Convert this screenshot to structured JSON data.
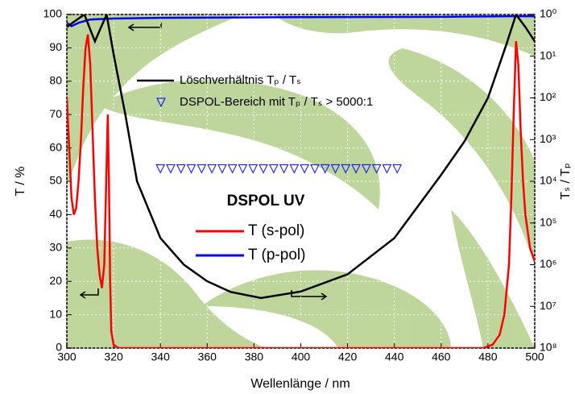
{
  "chart_data": {
    "type": "line",
    "legend_title": "DSPOL UV",
    "x_label": "Wellenlänge / nm",
    "y_label": "T / %",
    "y2_label": "Tₛ / Tₚ",
    "xlim": [
      300,
      500
    ],
    "xticks": [
      300,
      320,
      340,
      360,
      380,
      400,
      420,
      440,
      460,
      480,
      500
    ],
    "ylim": [
      0,
      100
    ],
    "yticks": [
      0,
      10,
      20,
      30,
      40,
      50,
      60,
      70,
      80,
      90,
      100
    ],
    "y2lim": [
      1,
      100000000
    ],
    "y2_log": true,
    "y2_inverted": true,
    "y2ticks": [
      {
        "value": 1,
        "label": "10⁰"
      },
      {
        "value": 10,
        "label": "10¹"
      },
      {
        "value": 100,
        "label": "10²"
      },
      {
        "value": 1000,
        "label": "10³"
      },
      {
        "value": 10000,
        "label": "10⁴"
      },
      {
        "value": 100000,
        "label": "10⁵"
      },
      {
        "value": 1000000,
        "label": "10⁶"
      },
      {
        "value": 10000000,
        "label": "10⁷"
      },
      {
        "value": 100000000,
        "label": "10⁸"
      }
    ],
    "grid": true,
    "series": [
      {
        "name": "T (s-pol)",
        "color": "#ff0000",
        "x": [
          300,
          301,
          302,
          303,
          304,
          305,
          306,
          307,
          308,
          309,
          310,
          311,
          312,
          313,
          314,
          315,
          316,
          317,
          317.5,
          318,
          318.5,
          319,
          320,
          322,
          340,
          400,
          460,
          478,
          482,
          485,
          487,
          489,
          490,
          491,
          492,
          493,
          494,
          495,
          496,
          498,
          500
        ],
        "values": [
          75,
          60,
          45,
          40,
          42,
          50,
          62,
          78,
          90,
          94,
          85,
          65,
          45,
          30,
          22,
          18,
          25,
          55,
          70,
          50,
          20,
          5,
          1,
          0,
          0,
          0,
          0,
          0,
          1,
          4,
          10,
          25,
          45,
          70,
          92,
          85,
          65,
          50,
          40,
          30,
          26
        ]
      },
      {
        "name": "T (p-pol)",
        "color": "#0000ff",
        "x": [
          300,
          302,
          305,
          310,
          320,
          340,
          400,
          460,
          490,
          500
        ],
        "values": [
          97.5,
          96.5,
          97.5,
          98.5,
          98.8,
          99,
          99.2,
          99.3,
          99.5,
          99.5
        ]
      },
      {
        "name": "Löschverhältnis Tₚ / Tₛ",
        "color": "#000000",
        "axis": "y2",
        "x": [
          300,
          303,
          307.5,
          312,
          317,
          320,
          325,
          330,
          340,
          350,
          360,
          370,
          383,
          400,
          420,
          440,
          460,
          470,
          480,
          488,
          492,
          496,
          500
        ],
        "values": [
          2,
          1.5,
          1,
          4.4,
          1,
          9,
          250,
          10000,
          230000,
          1000000,
          2500000,
          4500000,
          6300000,
          4400000,
          1700000,
          230000,
          7000,
          1100,
          100,
          5,
          1,
          2,
          4.4
        ]
      },
      {
        "name": "DSPOL-Bereich mit Tₚ / Tₛ > 5000:1",
        "color": "#0000ff",
        "axis": "y2",
        "marker": "triangle-down",
        "x": [
          340,
          344.4,
          348.8,
          353.2,
          357.6,
          362,
          366.4,
          370.8,
          375.2,
          379.6,
          384,
          388.4,
          392.8,
          397.2,
          401.6,
          406,
          410.4,
          414.8,
          419.2,
          423.6,
          428,
          432.4,
          436.8,
          441.2
        ],
        "values": [
          5000,
          5000,
          5000,
          5000,
          5000,
          5000,
          5000,
          5000,
          5000,
          5000,
          5000,
          5000,
          5000,
          5000,
          5000,
          5000,
          5000,
          5000,
          5000,
          5000,
          5000,
          5000,
          5000,
          5000
        ]
      }
    ]
  }
}
